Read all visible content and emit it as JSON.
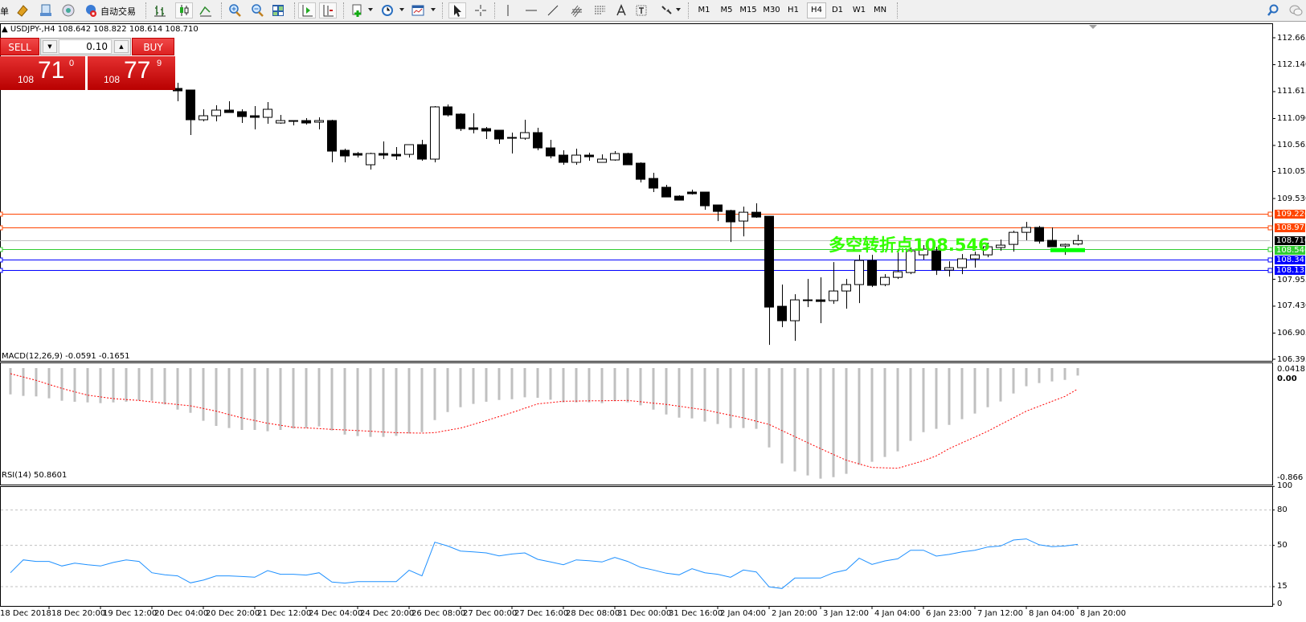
{
  "toolbar": {
    "cut_label": "单",
    "auto_trading_label": "自动交易",
    "timeframes": [
      {
        "label": "M1",
        "active": false
      },
      {
        "label": "M5",
        "active": false
      },
      {
        "label": "M15",
        "active": false
      },
      {
        "label": "M30",
        "active": false
      },
      {
        "label": "H1",
        "active": false
      },
      {
        "label": "H4",
        "active": true
      },
      {
        "label": "D1",
        "active": false
      },
      {
        "label": "W1",
        "active": false
      },
      {
        "label": "MN",
        "active": false
      }
    ],
    "icons": [
      "market-watch-icon",
      "navigator-icon",
      "signals-icon",
      "auto-trading-icon",
      "bar-chart-icon",
      "candlestick-icon",
      "line-chart-icon",
      "zoom-in-icon",
      "zoom-out-icon",
      "tile-windows-icon",
      "auto-scroll-icon",
      "chart-shift-icon",
      "indicators-icon",
      "periods-icon",
      "templates-icon",
      "cursor-icon",
      "crosshair-icon",
      "vertical-line-icon",
      "horizontal-line-icon",
      "trendline-icon",
      "fibo-fan-icon",
      "fibo-icon",
      "text-icon",
      "text-label-icon",
      "arrows-icon",
      "search-icon",
      "chat-icon"
    ]
  },
  "chart": {
    "header": "USDJPY-,H4  108.642 108.822 108.614 108.710",
    "symbol": "USDJPY-",
    "timeframe": "H4",
    "ohlc_readout": {
      "open": 108.642,
      "high": 108.822,
      "low": 108.614,
      "close": 108.71
    },
    "trade_panel": {
      "sell_label": "SELL",
      "buy_label": "BUY",
      "lot": "0.10",
      "sell_price": {
        "prefix": "108",
        "big": "71",
        "sup": "0"
      },
      "buy_price": {
        "prefix": "108",
        "big": "77",
        "sup": "9"
      }
    },
    "annotation": {
      "text": "多空转折点108.546",
      "color": "#33ff00"
    },
    "price_ticks": [
      "112.665",
      "112.140",
      "111.615",
      "111.090",
      "110.565",
      "110.055",
      "109.530",
      "107.955",
      "107.430",
      "106.905",
      "106.395"
    ],
    "hlines": [
      {
        "price": 109.226,
        "label": "109.226",
        "color": "#ff4500"
      },
      {
        "price": 108.973,
        "label": "108.973",
        "color": "#ff4500"
      },
      {
        "price": 108.71,
        "label": "108.710",
        "color": "#c0c0c0",
        "label_bg": "#000000"
      },
      {
        "price": 108.546,
        "label": "108.546",
        "color": "#32cd32"
      },
      {
        "price": 108.341,
        "label": "108.341",
        "color": "#0000ff"
      },
      {
        "price": 108.135,
        "label": "108.135",
        "color": "#0000ff"
      }
    ],
    "time_labels": [
      "18 Dec 2018",
      "18 Dec 20:00",
      "19 Dec 12:00",
      "20 Dec 04:00",
      "20 Dec 20:00",
      "21 Dec 12:00",
      "24 Dec 04:00",
      "24 Dec 20:00",
      "26 Dec 08:00",
      "27 Dec 00:00",
      "27 Dec 16:00",
      "28 Dec 08:00",
      "31 Dec 00:00",
      "31 Dec 16:00",
      "2 Jan 04:00",
      "2 Jan 20:00",
      "3 Jan 12:00",
      "4 Jan 04:00",
      "6 Jan 23:00",
      "7 Jan 12:00",
      "8 Jan 04:00",
      "8 Jan 20:00"
    ]
  },
  "chart_data": [
    {
      "type": "candlestick",
      "ylim": [
        106.395,
        112.665
      ],
      "ohlc": [
        [
          111.677,
          111.787,
          111.426,
          111.63
        ],
        [
          111.646,
          111.646,
          110.768,
          111.066
        ],
        [
          111.066,
          111.27,
          111.034,
          111.144
        ],
        [
          111.144,
          111.348,
          111.034,
          111.254
        ],
        [
          111.254,
          111.426,
          111.207,
          111.207
        ],
        [
          111.223,
          111.27,
          111.003,
          111.128
        ],
        [
          111.144,
          111.332,
          110.878,
          111.113
        ],
        [
          111.113,
          111.411,
          110.987,
          111.27
        ],
        [
          111.003,
          111.16,
          110.987,
          111.05
        ],
        [
          111.05,
          111.05,
          110.956,
          111.05
        ],
        [
          111.05,
          111.097,
          110.972,
          111.003
        ],
        [
          111.019,
          111.113,
          110.878,
          111.05
        ],
        [
          111.05,
          111.066,
          110.235,
          110.454
        ],
        [
          110.47,
          110.501,
          110.235,
          110.36
        ],
        [
          110.407,
          110.438,
          110.329,
          110.376
        ],
        [
          110.188,
          110.423,
          110.094,
          110.407
        ],
        [
          110.407,
          110.642,
          110.298,
          110.376
        ],
        [
          110.391,
          110.533,
          110.282,
          110.36
        ],
        [
          110.391,
          110.58,
          110.329,
          110.58
        ],
        [
          110.58,
          110.674,
          110.266,
          110.298
        ],
        [
          110.298,
          111.332,
          110.235,
          111.317
        ],
        [
          111.317,
          111.364,
          111.129,
          111.16
        ],
        [
          111.176,
          111.191,
          110.846,
          110.893
        ],
        [
          110.909,
          111.191,
          110.799,
          110.878
        ],
        [
          110.893,
          110.925,
          110.69,
          110.846
        ],
        [
          110.862,
          110.862,
          110.595,
          110.69
        ],
        [
          110.721,
          110.815,
          110.407,
          110.721
        ],
        [
          110.705,
          111.066,
          110.674,
          110.815
        ],
        [
          110.815,
          110.909,
          110.47,
          110.517
        ],
        [
          110.517,
          110.674,
          110.313,
          110.36
        ],
        [
          110.376,
          110.47,
          110.188,
          110.235
        ],
        [
          110.235,
          110.501,
          110.188,
          110.376
        ],
        [
          110.376,
          110.423,
          110.266,
          110.344
        ],
        [
          110.235,
          110.391,
          110.235,
          110.298
        ],
        [
          110.282,
          110.454,
          110.266,
          110.407
        ],
        [
          110.407,
          110.423,
          110.188,
          110.188
        ],
        [
          110.219,
          110.235,
          109.843,
          109.905
        ],
        [
          109.921,
          110.031,
          109.655,
          109.733
        ],
        [
          109.749,
          109.796,
          109.56,
          109.56
        ],
        [
          109.576,
          109.592,
          109.498,
          109.498
        ],
        [
          109.655,
          109.702,
          109.607,
          109.623
        ],
        [
          109.655,
          109.655,
          109.31,
          109.388
        ],
        [
          109.404,
          109.404,
          109.09,
          109.278
        ],
        [
          109.294,
          109.31,
          108.682,
          109.074
        ],
        [
          109.09,
          109.372,
          108.792,
          109.262
        ],
        [
          109.262,
          109.435,
          109.153,
          109.168
        ],
        [
          109.184,
          109.184,
          106.675,
          107.412
        ],
        [
          107.428,
          107.851,
          107.02,
          107.146
        ],
        [
          107.146,
          107.663,
          106.754,
          107.553
        ],
        [
          107.553,
          107.961,
          107.412,
          107.553
        ],
        [
          107.553,
          107.992,
          107.098,
          107.522
        ],
        [
          107.538,
          108.29,
          107.475,
          107.726
        ],
        [
          107.726,
          107.961,
          107.381,
          107.851
        ],
        [
          107.851,
          108.431,
          107.491,
          108.322
        ],
        [
          108.322,
          108.431,
          107.804,
          107.836
        ],
        [
          107.851,
          108.055,
          107.82,
          107.992
        ],
        [
          107.992,
          108.541,
          107.961,
          108.102
        ],
        [
          108.086,
          108.573,
          108.055,
          108.51
        ],
        [
          108.431,
          108.62,
          108.337,
          108.541
        ],
        [
          108.51,
          108.588,
          108.039,
          108.134
        ],
        [
          108.134,
          108.306,
          108.008,
          108.181
        ],
        [
          108.181,
          108.447,
          108.055,
          108.353
        ],
        [
          108.353,
          108.494,
          108.181,
          108.431
        ],
        [
          108.431,
          108.667,
          108.384,
          108.588
        ],
        [
          108.573,
          108.729,
          108.51,
          108.62
        ],
        [
          108.635,
          108.902,
          108.494,
          108.87
        ],
        [
          108.87,
          109.074,
          108.714,
          108.965
        ],
        [
          108.965,
          108.996,
          108.651,
          108.698
        ],
        [
          108.714,
          108.965,
          108.588,
          108.588
        ],
        [
          108.604,
          108.651,
          108.431,
          108.635
        ],
        [
          108.642,
          108.822,
          108.614,
          108.71
        ]
      ]
    },
    {
      "type": "bar+line",
      "label": "MACD(12,26,9) -0.0591 -0.1651",
      "ylim": [
        -0.866,
        0.0418
      ],
      "tick_labels": [
        "0.0418",
        "0.00",
        "-0.866"
      ],
      "series": [
        {
          "kind": "histogram",
          "color": "#c0c0c0",
          "values": [
            -0.207,
            -0.219,
            -0.223,
            -0.238,
            -0.257,
            -0.265,
            -0.27,
            -0.276,
            -0.27,
            -0.265,
            -0.255,
            -0.257,
            -0.286,
            -0.327,
            -0.352,
            -0.415,
            -0.455,
            -0.472,
            -0.487,
            -0.487,
            -0.497,
            -0.487,
            -0.476,
            -0.472,
            -0.459,
            -0.491,
            -0.523,
            -0.535,
            -0.541,
            -0.541,
            -0.533,
            -0.514,
            -0.504,
            -0.409,
            -0.346,
            -0.308,
            -0.282,
            -0.265,
            -0.251,
            -0.245,
            -0.23,
            -0.234,
            -0.249,
            -0.27,
            -0.27,
            -0.27,
            -0.276,
            -0.261,
            -0.27,
            -0.293,
            -0.327,
            -0.365,
            -0.39,
            -0.396,
            -0.421,
            -0.44,
            -0.472,
            -0.472,
            -0.478,
            -0.624,
            -0.75,
            -0.813,
            -0.845,
            -0.87,
            -0.858,
            -0.832,
            -0.76,
            -0.737,
            -0.699,
            -0.655,
            -0.573,
            -0.504,
            -0.478,
            -0.447,
            -0.402,
            -0.358,
            -0.308,
            -0.263,
            -0.2,
            -0.143,
            -0.118,
            -0.105,
            -0.093,
            -0.0591
          ]
        },
        {
          "kind": "signal",
          "color": "#ff0000",
          "values": [
            -0.044,
            -0.07,
            -0.097,
            -0.129,
            -0.16,
            -0.187,
            -0.213,
            -0.227,
            -0.24,
            -0.248,
            -0.255,
            -0.266,
            -0.276,
            -0.287,
            -0.297,
            -0.318,
            -0.339,
            -0.366,
            -0.392,
            -0.413,
            -0.434,
            -0.45,
            -0.466,
            -0.471,
            -0.476,
            -0.482,
            -0.487,
            -0.492,
            -0.497,
            -0.503,
            -0.508,
            -0.51,
            -0.512,
            -0.508,
            -0.49,
            -0.472,
            -0.443,
            -0.413,
            -0.382,
            -0.35,
            -0.316,
            -0.282,
            -0.272,
            -0.261,
            -0.26,
            -0.258,
            -0.257,
            -0.256,
            -0.255,
            -0.265,
            -0.276,
            -0.286,
            -0.3,
            -0.315,
            -0.329,
            -0.35,
            -0.371,
            -0.392,
            -0.418,
            -0.444,
            -0.492,
            -0.539,
            -0.587,
            -0.634,
            -0.68,
            -0.725,
            -0.754,
            -0.782,
            -0.785,
            -0.788,
            -0.759,
            -0.729,
            -0.691,
            -0.634,
            -0.588,
            -0.543,
            -0.497,
            -0.444,
            -0.392,
            -0.339,
            -0.3,
            -0.262,
            -0.223,
            -0.1651
          ]
        }
      ]
    },
    {
      "type": "line",
      "label": "RSI(14) 50.8601",
      "ylim": [
        0,
        100
      ],
      "levels": [
        80,
        50,
        15
      ],
      "tick_labels": [
        "100",
        "80",
        "50",
        "15",
        "0"
      ],
      "color": "#1e90ff",
      "values": [
        26.8,
        37.7,
        36.4,
        36.4,
        32.5,
        35.0,
        33.6,
        32.5,
        35.5,
        37.7,
        36.4,
        26.8,
        25.0,
        24.1,
        18.2,
        20.5,
        24.1,
        24.1,
        23.6,
        23.0,
        28.6,
        25.5,
        25.5,
        24.8,
        26.8,
        18.9,
        18.0,
        19.3,
        19.3,
        19.3,
        19.3,
        28.9,
        24.1,
        52.7,
        49.5,
        45.2,
        44.5,
        43.6,
        41.1,
        42.7,
        43.6,
        38.2,
        35.9,
        33.6,
        37.7,
        37.0,
        35.9,
        39.8,
        36.4,
        31.4,
        29.1,
        26.4,
        25.0,
        30.2,
        26.8,
        25.5,
        23.0,
        29.1,
        27.5,
        14.8,
        13.4,
        22.3,
        22.3,
        22.3,
        26.8,
        29.1,
        39.1,
        33.9,
        36.8,
        38.6,
        45.9,
        45.9,
        40.9,
        42.3,
        44.5,
        45.9,
        48.6,
        49.5,
        54.5,
        55.5,
        50.5,
        48.9,
        49.5,
        50.86
      ]
    }
  ]
}
